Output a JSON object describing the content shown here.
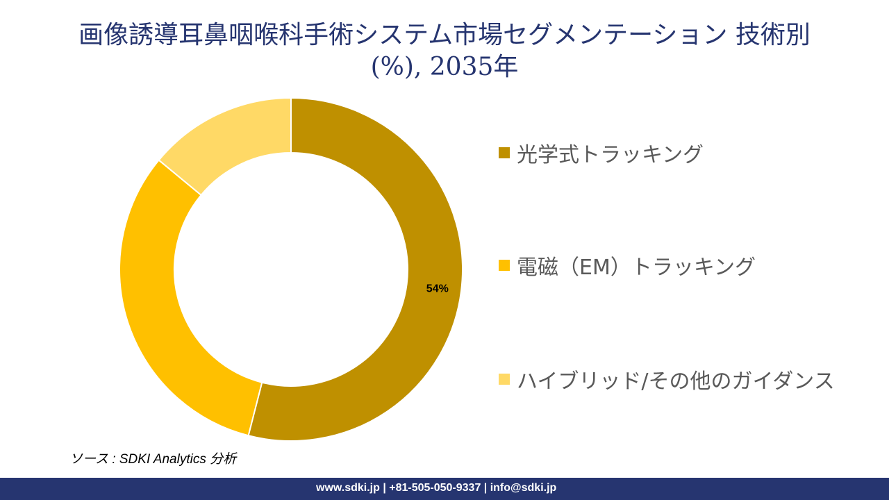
{
  "chart_data": {
    "type": "pie",
    "donut": true,
    "title": "画像誘導耳鼻咽喉科手術システム市場セグメンテーション 技術別(%), 2035年",
    "categories": [
      "光学式トラッキング",
      "電磁（EM）トラッキング",
      "ハイブリッド/その他のガイダンス"
    ],
    "values": [
      54,
      32,
      14
    ],
    "colors": [
      "#BF9000",
      "#FFC000",
      "#FFD966"
    ],
    "data_labels": [
      "54%",
      "",
      ""
    ],
    "legend_position": "right"
  },
  "source": "ソース : SDKI Analytics 分析",
  "footer": "www.sdki.jp | +81-505-050-9337 | info@sdki.jp"
}
